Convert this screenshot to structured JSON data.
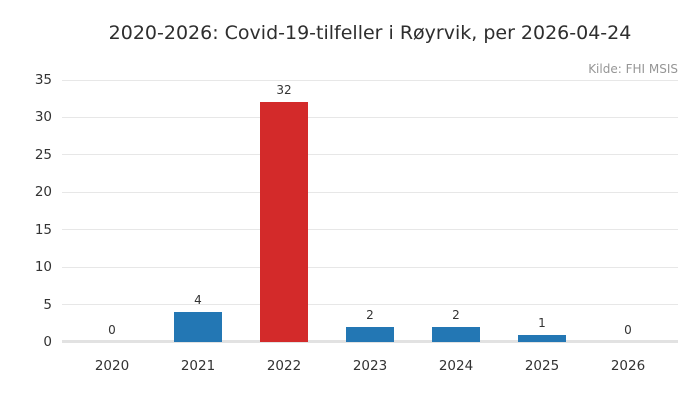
{
  "chart_data": {
    "type": "bar",
    "title": "2020-2026: Covid-19-tilfeller i Røyrvik, per 2026-04-24",
    "source": "Kilde: FHI MSIS",
    "categories": [
      "2020",
      "2021",
      "2022",
      "2023",
      "2024",
      "2025",
      "2026"
    ],
    "values": [
      0,
      4,
      32,
      2,
      2,
      1,
      0
    ],
    "value_labels": [
      "0",
      "4",
      "32",
      "2",
      "2",
      "1",
      "0"
    ],
    "bar_colors": [
      "#2377b4",
      "#2377b4",
      "#d32a2a",
      "#2377b4",
      "#2377b4",
      "#2377b4",
      "#2377b4"
    ],
    "highlighted_category": "2022",
    "xlabel": "",
    "ylabel": "",
    "ylim": [
      0,
      35
    ],
    "yticks": [
      0,
      5,
      10,
      15,
      20,
      25,
      30,
      35
    ],
    "grid": true,
    "legend": false,
    "colors": {
      "bar_default": "#2377b4",
      "bar_highlight": "#d32a2a",
      "gridline": "#e7e7e7",
      "baseline": "#e2e2e2",
      "tick_text": "#333333",
      "title_text": "#2e2e2e",
      "source_text": "#969696",
      "background": "#ffffff"
    }
  }
}
